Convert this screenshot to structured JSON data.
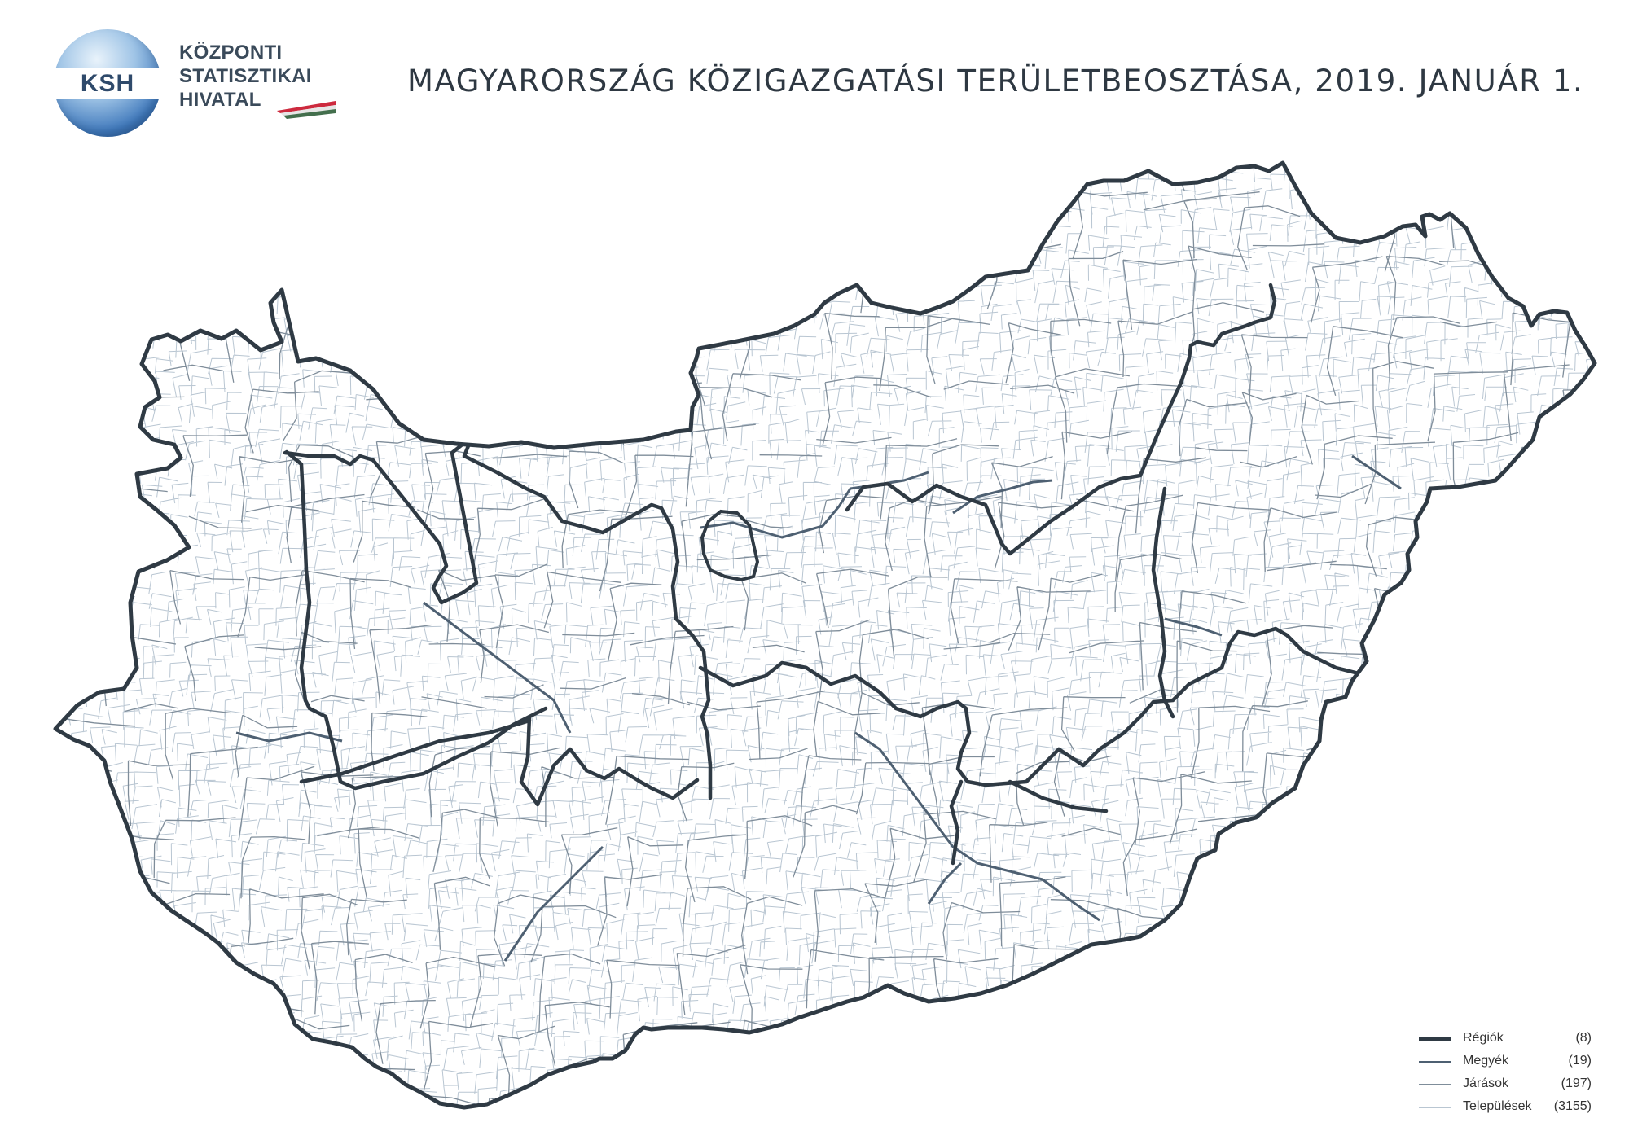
{
  "logo": {
    "mark": "KSH",
    "lines": [
      "KÖZPONTI",
      "STATISZTIKAI",
      "HIVATAL"
    ],
    "flag_colors": [
      "#cd2a3e",
      "#ffffff",
      "#436f4d"
    ]
  },
  "title": "MAGYARORSZÁG KÖZIGAZGATÁSI TERÜLETBEOSZTÁSA, 2019. JANUÁR 1.",
  "colors": {
    "region_border": "#2f3a44",
    "county_border": "#4e6072",
    "district_border": "#7f8d9a",
    "settlement_border": "#b9c6d2",
    "land_fill": "#ffffff"
  },
  "legend": [
    {
      "label": "Régiók",
      "count": "(8)",
      "level": "region"
    },
    {
      "label": "Megyék",
      "count": "(19)",
      "level": "county"
    },
    {
      "label": "Járások",
      "count": "(197)",
      "level": "district"
    },
    {
      "label": "Települések",
      "count": "(3155)",
      "level": "settlement"
    }
  ]
}
